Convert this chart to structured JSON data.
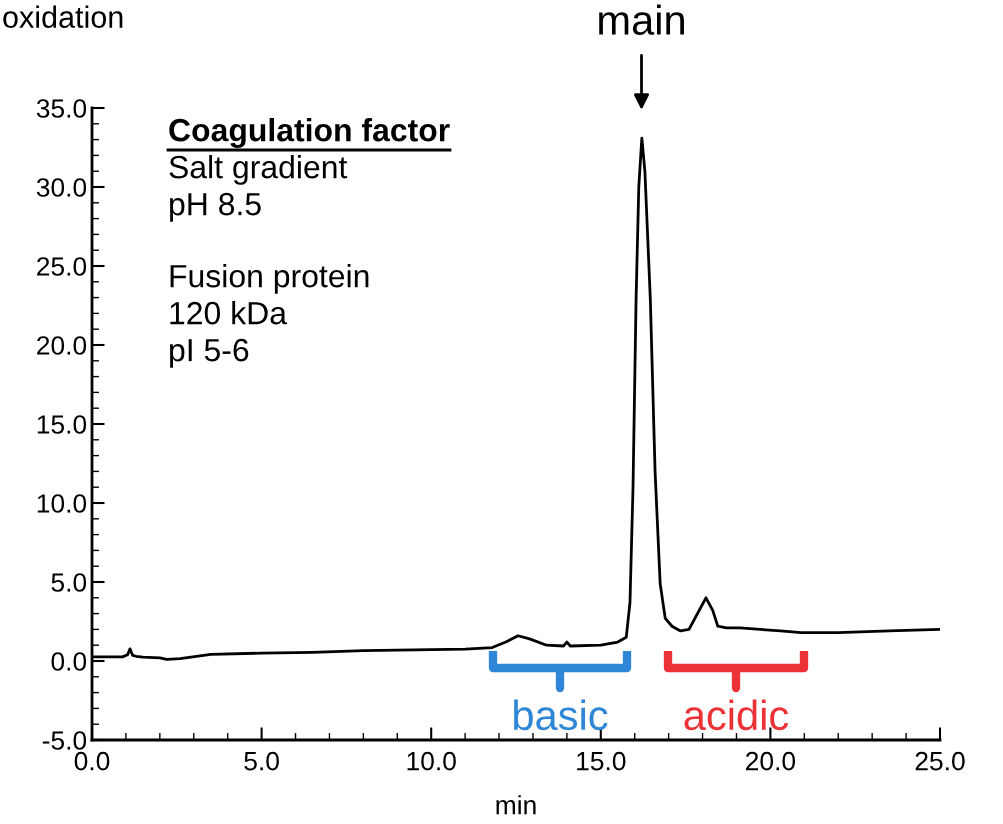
{
  "chart_data": {
    "type": "line",
    "xlabel": "min",
    "ylabel": "oxidation",
    "x": [
      0,
      0.9,
      1.05,
      1.12,
      1.2,
      1.3,
      1.5,
      2.0,
      2.2,
      2.6,
      3.5,
      5,
      6.5,
      8,
      9.5,
      11,
      11.8,
      12.2,
      12.56,
      12.9,
      13.4,
      13.9,
      14.0,
      14.1,
      15.0,
      15.5,
      15.75,
      15.86,
      15.95,
      16.04,
      16.12,
      16.21,
      16.3,
      16.46,
      16.6,
      16.75,
      16.9,
      17.1,
      17.35,
      17.6,
      17.8,
      18.1,
      18.3,
      18.45,
      18.7,
      19.1,
      19.7,
      20.3,
      20.9,
      22,
      23.5,
      25
    ],
    "series": [
      {
        "color": "#000000",
        "values": [
          0.26,
          0.26,
          0.4,
          0.77,
          0.35,
          0.3,
          0.25,
          0.2,
          0.1,
          0.15,
          0.42,
          0.5,
          0.55,
          0.65,
          0.7,
          0.75,
          0.85,
          1.2,
          1.6,
          1.4,
          1.0,
          0.95,
          1.2,
          0.95,
          1.0,
          1.2,
          1.5,
          3.7,
          11,
          22.9,
          30,
          33.1,
          31,
          22.9,
          12,
          4.9,
          2.7,
          2.2,
          1.9,
          2.0,
          2.8,
          4.0,
          3.2,
          2.2,
          2.1,
          2.1,
          2.0,
          1.9,
          1.8,
          1.8,
          1.9,
          2.0
        ]
      }
    ],
    "xlim": [
      0,
      25
    ],
    "xticks": [
      {
        "value": 0,
        "label": "0.0"
      },
      {
        "value": 5,
        "label": "5.0"
      },
      {
        "value": 10,
        "label": "10.0"
      },
      {
        "value": 15,
        "label": "15.0"
      },
      {
        "value": 20,
        "label": "20.0"
      },
      {
        "value": 25,
        "label": "25.0"
      }
    ],
    "ylim": [
      -5,
      35
    ],
    "yticks": [
      {
        "value": -5,
        "label": "-5.0"
      },
      {
        "value": 0,
        "label": "0.0"
      },
      {
        "value": 5,
        "label": "5.0"
      },
      {
        "value": 10,
        "label": "10.0"
      },
      {
        "value": 15,
        "label": "15.0"
      },
      {
        "value": 20,
        "label": "20.0"
      },
      {
        "value": 25,
        "label": "25.0"
      },
      {
        "value": 30,
        "label": "30.0"
      },
      {
        "value": 35,
        "label": "35.0"
      }
    ],
    "annotations": [
      {
        "text": "main",
        "x": 16.2,
        "y": 33.1
      },
      "Coagulation factor",
      "Salt gradient",
      "pH 8.5",
      "Fusion protein",
      "120 kDa",
      "pI 5-6",
      "basic",
      "acidic"
    ],
    "grid": false,
    "legend": false
  }
}
